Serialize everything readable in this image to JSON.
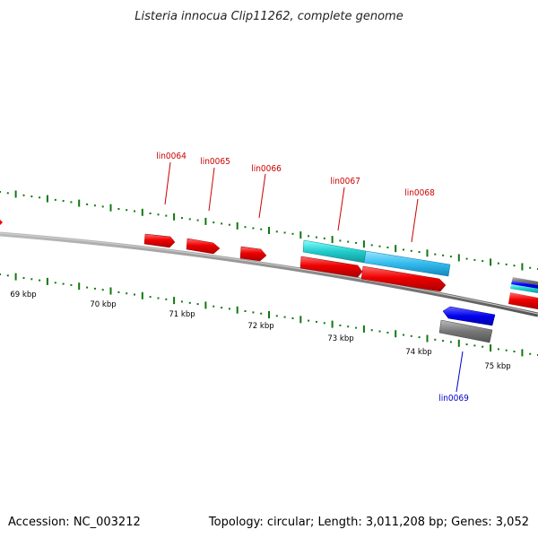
{
  "title": "Listeria innocua Clip11262, complete genome",
  "footer": {
    "accession": "Accession: NC_003212",
    "summary": "Topology: circular; Length: 3,011,208 bp; Genes: 3,052"
  },
  "scale_labels": [
    "69 kbp",
    "70 kbp",
    "71 kbp",
    "72 kbp",
    "73 kbp",
    "74 kbp",
    "75 kbp"
  ],
  "gene_labels": [
    {
      "name": "lin0064",
      "color": "#cc0000"
    },
    {
      "name": "lin0065",
      "color": "#cc0000"
    },
    {
      "name": "lin0066",
      "color": "#cc0000"
    },
    {
      "name": "lin0067",
      "color": "#cc0000"
    },
    {
      "name": "lin0068",
      "color": "#cc0000"
    },
    {
      "name": "lin0069",
      "color": "#0000cc"
    }
  ],
  "colors": {
    "cds": "#ee0000",
    "rna_cyan": "#22cccc",
    "rna_skyblue": "#33bbee",
    "reverse_cds": "#0000ee",
    "gene_gray": "#777777",
    "backbone": "#888888",
    "ticks": "#117711"
  }
}
